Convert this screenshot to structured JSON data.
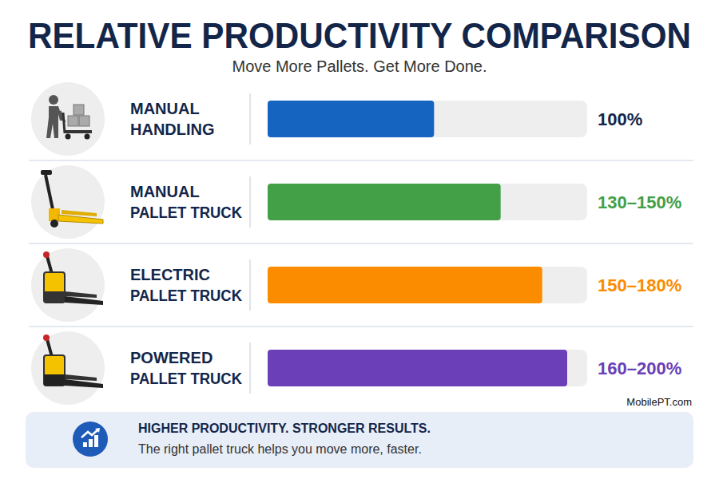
{
  "chart_data": {
    "type": "bar",
    "orientation": "horizontal",
    "title": "RELATIVE PRODUCTIVITY COMPARISON",
    "subtitle": "Move More Pallets. Get More Done.",
    "categories": [
      "MANUAL HANDLING",
      "MANUAL PALLET TRUCK",
      "ELECTRIC PALLET TRUCK",
      "POWERED PALLET TRUCK"
    ],
    "values": [
      100,
      140,
      165,
      180
    ],
    "value_labels": [
      "100%",
      "130–150%",
      "150–180%",
      "160–200%"
    ],
    "colors": [
      "#1565c0",
      "#43a047",
      "#fb8c00",
      "#6a3fb8"
    ],
    "xlim": [
      0,
      192
    ],
    "data_labels": true,
    "tick_labels": false,
    "grid": false,
    "annotations": [
      "MobilePT.com",
      "HIGHER PRODUCTIVITY. STRONGER RESULTS.",
      "The right pallet truck helps you move more, faster."
    ]
  }
}
